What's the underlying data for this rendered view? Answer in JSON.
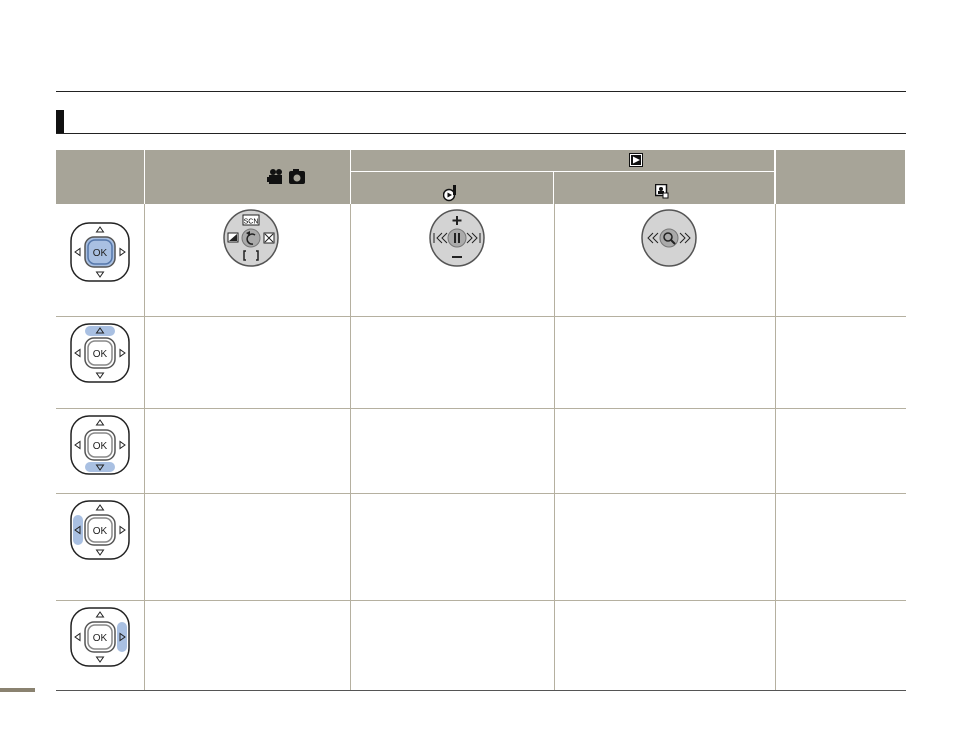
{
  "colors": {
    "header_bg": "#a7a498",
    "highlight": "#a9c0e2",
    "pad_outline": "#222222"
  },
  "header": {
    "icons": {
      "record_mode": "camcorder-icon",
      "photo_mode": "camera-icon",
      "playback": "play-icon",
      "video_playback": "video-play-icon",
      "photo_playback": "photo-play-icon"
    }
  },
  "pad": {
    "ok_label": "OK"
  },
  "rows": [
    {
      "highlight": "center"
    },
    {
      "highlight": "up"
    },
    {
      "highlight": "down"
    },
    {
      "highlight": "left"
    },
    {
      "highlight": "right"
    }
  ],
  "dials": {
    "record": {
      "scn_label": "SCN",
      "icons": [
        "scene-icon",
        "exposure-icon",
        "back-icon",
        "focus-icon",
        "bracket-icon"
      ]
    },
    "video": {
      "icons": [
        "plus-icon",
        "skip-back-icon",
        "pause-icon",
        "skip-forward-icon",
        "minus-icon"
      ]
    },
    "photo": {
      "icons": [
        "rewind-icon",
        "zoom-icon",
        "forward-icon"
      ]
    }
  }
}
